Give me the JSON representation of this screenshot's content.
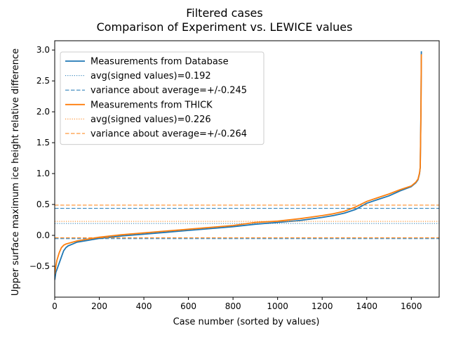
{
  "chart_data": {
    "type": "line",
    "title": "Filtered cases",
    "subtitle": "Comparison of Experiment vs. LEWICE values",
    "xlabel": "Case number (sorted by values)",
    "ylabel": "Upper surface maximum ice height relative difference",
    "xlim": [
      0,
      1725
    ],
    "ylim": [
      -1.0,
      3.15
    ],
    "xticks": [
      0,
      200,
      400,
      600,
      800,
      1000,
      1200,
      1400,
      1600
    ],
    "yticks": [
      -0.5,
      0.0,
      0.5,
      1.0,
      1.5,
      2.0,
      2.5,
      3.0
    ],
    "xtick_labels": [
      "0",
      "200",
      "400",
      "600",
      "800",
      "1000",
      "1200",
      "1400",
      "1600"
    ],
    "ytick_labels": [
      "−0.5",
      "0.0",
      "0.5",
      "1.0",
      "1.5",
      "2.0",
      "2.5",
      "3.0"
    ],
    "grid": false,
    "legend_position": "top-left",
    "series": [
      {
        "name": "Measurements from Database",
        "color": "#1f77b4",
        "style": "solid",
        "x": [
          0,
          5,
          10,
          20,
          30,
          40,
          50,
          60,
          80,
          100,
          150,
          200,
          250,
          300,
          400,
          500,
          600,
          700,
          800,
          900,
          1000,
          1100,
          1200,
          1250,
          1300,
          1350,
          1400,
          1450,
          1500,
          1550,
          1600,
          1620,
          1630,
          1637,
          1640,
          1643,
          1645
        ],
        "values": [
          -0.72,
          -0.6,
          -0.55,
          -0.45,
          -0.35,
          -0.25,
          -0.2,
          -0.17,
          -0.14,
          -0.11,
          -0.08,
          -0.05,
          -0.03,
          -0.01,
          0.02,
          0.05,
          0.08,
          0.11,
          0.14,
          0.18,
          0.21,
          0.24,
          0.29,
          0.32,
          0.36,
          0.42,
          0.52,
          0.58,
          0.64,
          0.72,
          0.79,
          0.85,
          0.9,
          1.0,
          1.1,
          2.0,
          2.98
        ]
      },
      {
        "name": "avg(signed values)=0.192",
        "color": "#1f77b4",
        "style": "dotted",
        "constant": 0.192
      },
      {
        "name": "variance about average=+/-0.245",
        "color": "#1f77b4",
        "style": "dashed",
        "constant_band": [
          -0.053,
          0.437
        ]
      },
      {
        "name": "Measurements from THICK",
        "color": "#ff7f0e",
        "style": "solid",
        "x": [
          0,
          5,
          10,
          20,
          30,
          40,
          50,
          60,
          80,
          100,
          150,
          200,
          250,
          300,
          400,
          500,
          600,
          700,
          800,
          900,
          1000,
          1100,
          1200,
          1250,
          1300,
          1350,
          1400,
          1450,
          1500,
          1550,
          1600,
          1620,
          1630,
          1637,
          1640,
          1643,
          1645
        ],
        "values": [
          -0.63,
          -0.5,
          -0.4,
          -0.28,
          -0.2,
          -0.16,
          -0.14,
          -0.13,
          -0.11,
          -0.09,
          -0.06,
          -0.03,
          -0.01,
          0.01,
          0.04,
          0.07,
          0.1,
          0.13,
          0.16,
          0.21,
          0.23,
          0.27,
          0.32,
          0.35,
          0.39,
          0.46,
          0.55,
          0.61,
          0.67,
          0.74,
          0.8,
          0.86,
          0.91,
          1.01,
          1.1,
          1.95,
          2.93
        ]
      },
      {
        "name": "avg(signed values)=0.226",
        "color": "#ff7f0e",
        "style": "dotted",
        "constant": 0.226
      },
      {
        "name": "variance about average=+/-0.264",
        "color": "#ff7f0e",
        "style": "dashed",
        "constant_band": [
          -0.038,
          0.49
        ]
      }
    ]
  }
}
